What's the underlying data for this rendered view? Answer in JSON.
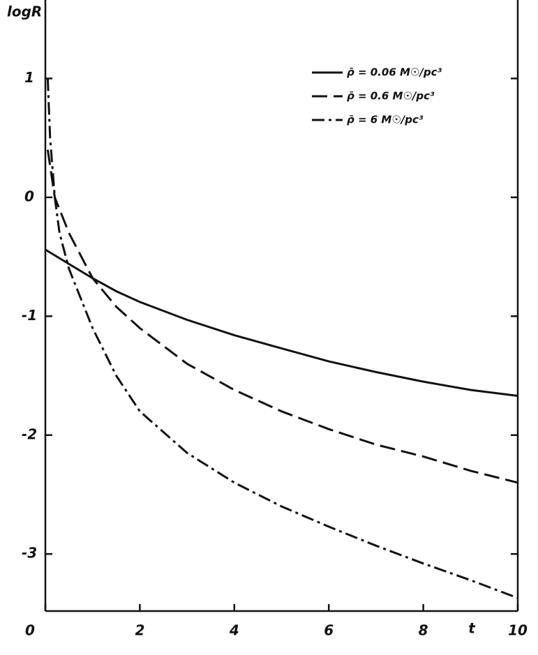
{
  "chart_data": {
    "type": "line",
    "x_label": "t",
    "y_label": "logR",
    "xlim": [
      0,
      10
    ],
    "xticks": [
      0,
      2,
      4,
      6,
      8,
      10
    ],
    "ylim": [
      -3.48,
      1.66
    ],
    "yticks": [
      1,
      0,
      -1,
      -2,
      -3
    ],
    "legend": "upper right",
    "series": [
      {
        "name": "ρ̄ = 0.06 M☉/pc³",
        "color": "#111111",
        "dash": "solid",
        "x": [
          0,
          0.5,
          1,
          1.5,
          2,
          3,
          4,
          5,
          6,
          7,
          8,
          9,
          10
        ],
        "values": [
          -0.44,
          -0.56,
          -0.68,
          -0.79,
          -0.88,
          -1.03,
          -1.16,
          -1.27,
          -1.38,
          -1.47,
          -1.55,
          -1.62,
          -1.67
        ]
      },
      {
        "name": "ρ̄ = 0.6 M☉/pc³",
        "color": "#111111",
        "dash": "dashed",
        "x": [
          0.05,
          0.2,
          0.5,
          1,
          1.5,
          2,
          3,
          4,
          5,
          6,
          7,
          8,
          9,
          10
        ],
        "values": [
          0.4,
          0,
          -0.3,
          -0.68,
          -0.92,
          -1.1,
          -1.4,
          -1.62,
          -1.8,
          -1.95,
          -2.08,
          -2.18,
          -2.3,
          -2.4
        ]
      },
      {
        "name": "ρ̄ = 6 M☉/pc³",
        "color": "#111111",
        "dash": "dashdot",
        "x": [
          0.05,
          0.1,
          0.2,
          0.3,
          0.5,
          1,
          1.5,
          2,
          3,
          4,
          5,
          6,
          7,
          8,
          9,
          10
        ],
        "values": [
          1.0,
          0.5,
          0.0,
          -0.3,
          -0.6,
          -1.1,
          -1.5,
          -1.8,
          -2.15,
          -2.4,
          -2.6,
          -2.77,
          -2.93,
          -3.08,
          -3.22,
          -3.37
        ]
      }
    ]
  }
}
